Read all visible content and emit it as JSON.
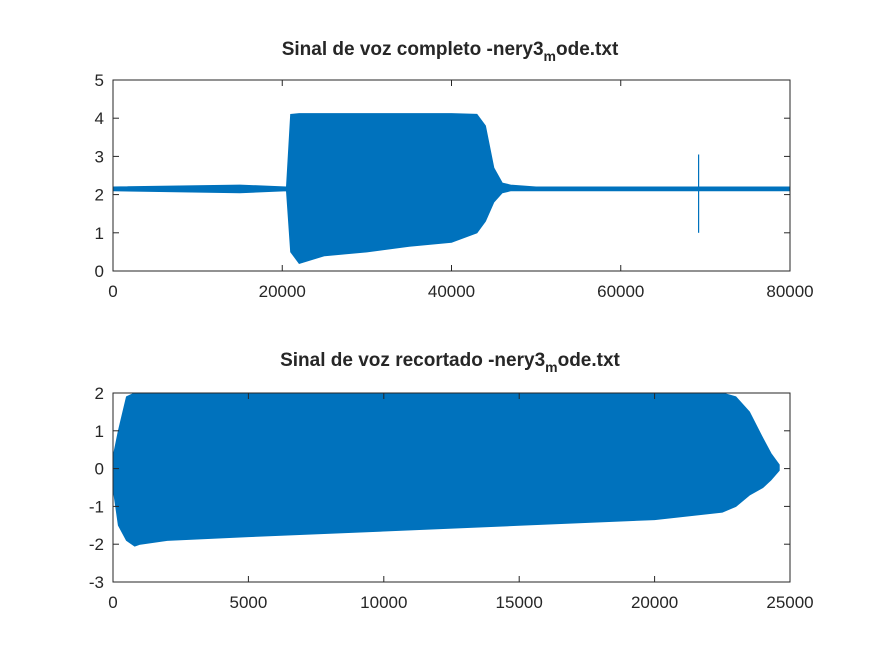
{
  "chart_data": [
    {
      "type": "line",
      "title": "Sinal de voz completo -nery3",
      "title_subscript": "m",
      "title_suffix": "ode.txt",
      "xlabel": "",
      "ylabel": "",
      "xlim": [
        0,
        80000
      ],
      "ylim": [
        0,
        5
      ],
      "xticks": [
        0,
        20000,
        40000,
        60000,
        80000
      ],
      "yticks": [
        0,
        1,
        2,
        3,
        4,
        5
      ],
      "grid": false,
      "series_color": "#0072BD",
      "baseline": 2.15,
      "segments": {
        "x": [
          0,
          15000,
          20500,
          21000,
          22000,
          25000,
          30000,
          35000,
          40000,
          43000,
          44000,
          45000,
          46000,
          47000,
          50000,
          60000,
          69000,
          69500,
          80000
        ],
        "upper": [
          2.2,
          2.25,
          2.2,
          4.1,
          4.12,
          4.12,
          4.12,
          4.12,
          4.12,
          4.1,
          3.8,
          2.7,
          2.3,
          2.25,
          2.2,
          2.2,
          2.2,
          2.2,
          2.2
        ],
        "lower": [
          2.1,
          2.05,
          2.1,
          0.5,
          0.2,
          0.4,
          0.5,
          0.65,
          0.75,
          1.0,
          1.3,
          1.8,
          2.05,
          2.1,
          2.1,
          2.1,
          2.1,
          2.1,
          2.1
        ]
      },
      "spike": {
        "x": 69200,
        "y_min": 1.0,
        "y_max": 3.05
      }
    },
    {
      "type": "line",
      "title": "Sinal de voz recortado -nery3",
      "title_subscript": "m",
      "title_suffix": "ode.txt",
      "xlabel": "",
      "ylabel": "",
      "xlim": [
        0,
        25000
      ],
      "ylim": [
        -3,
        2
      ],
      "xticks": [
        0,
        5000,
        10000,
        15000,
        20000,
        25000
      ],
      "yticks": [
        -3,
        -2,
        -1,
        0,
        1,
        2
      ],
      "grid": false,
      "series_color": "#0072BD",
      "segments": {
        "x": [
          0,
          200,
          500,
          800,
          1000,
          2000,
          5000,
          10000,
          15000,
          20000,
          22500,
          23000,
          23500,
          24000,
          24300,
          24600
        ],
        "upper": [
          0.3,
          1.0,
          1.9,
          2.0,
          2.0,
          2.0,
          2.0,
          2.0,
          2.0,
          2.0,
          2.0,
          1.9,
          1.5,
          0.8,
          0.4,
          0.1
        ],
        "lower": [
          -0.5,
          -1.5,
          -1.9,
          -2.05,
          -2.0,
          -1.9,
          -1.8,
          -1.65,
          -1.5,
          -1.35,
          -1.15,
          -1.0,
          -0.7,
          -0.5,
          -0.3,
          -0.05
        ]
      }
    }
  ]
}
